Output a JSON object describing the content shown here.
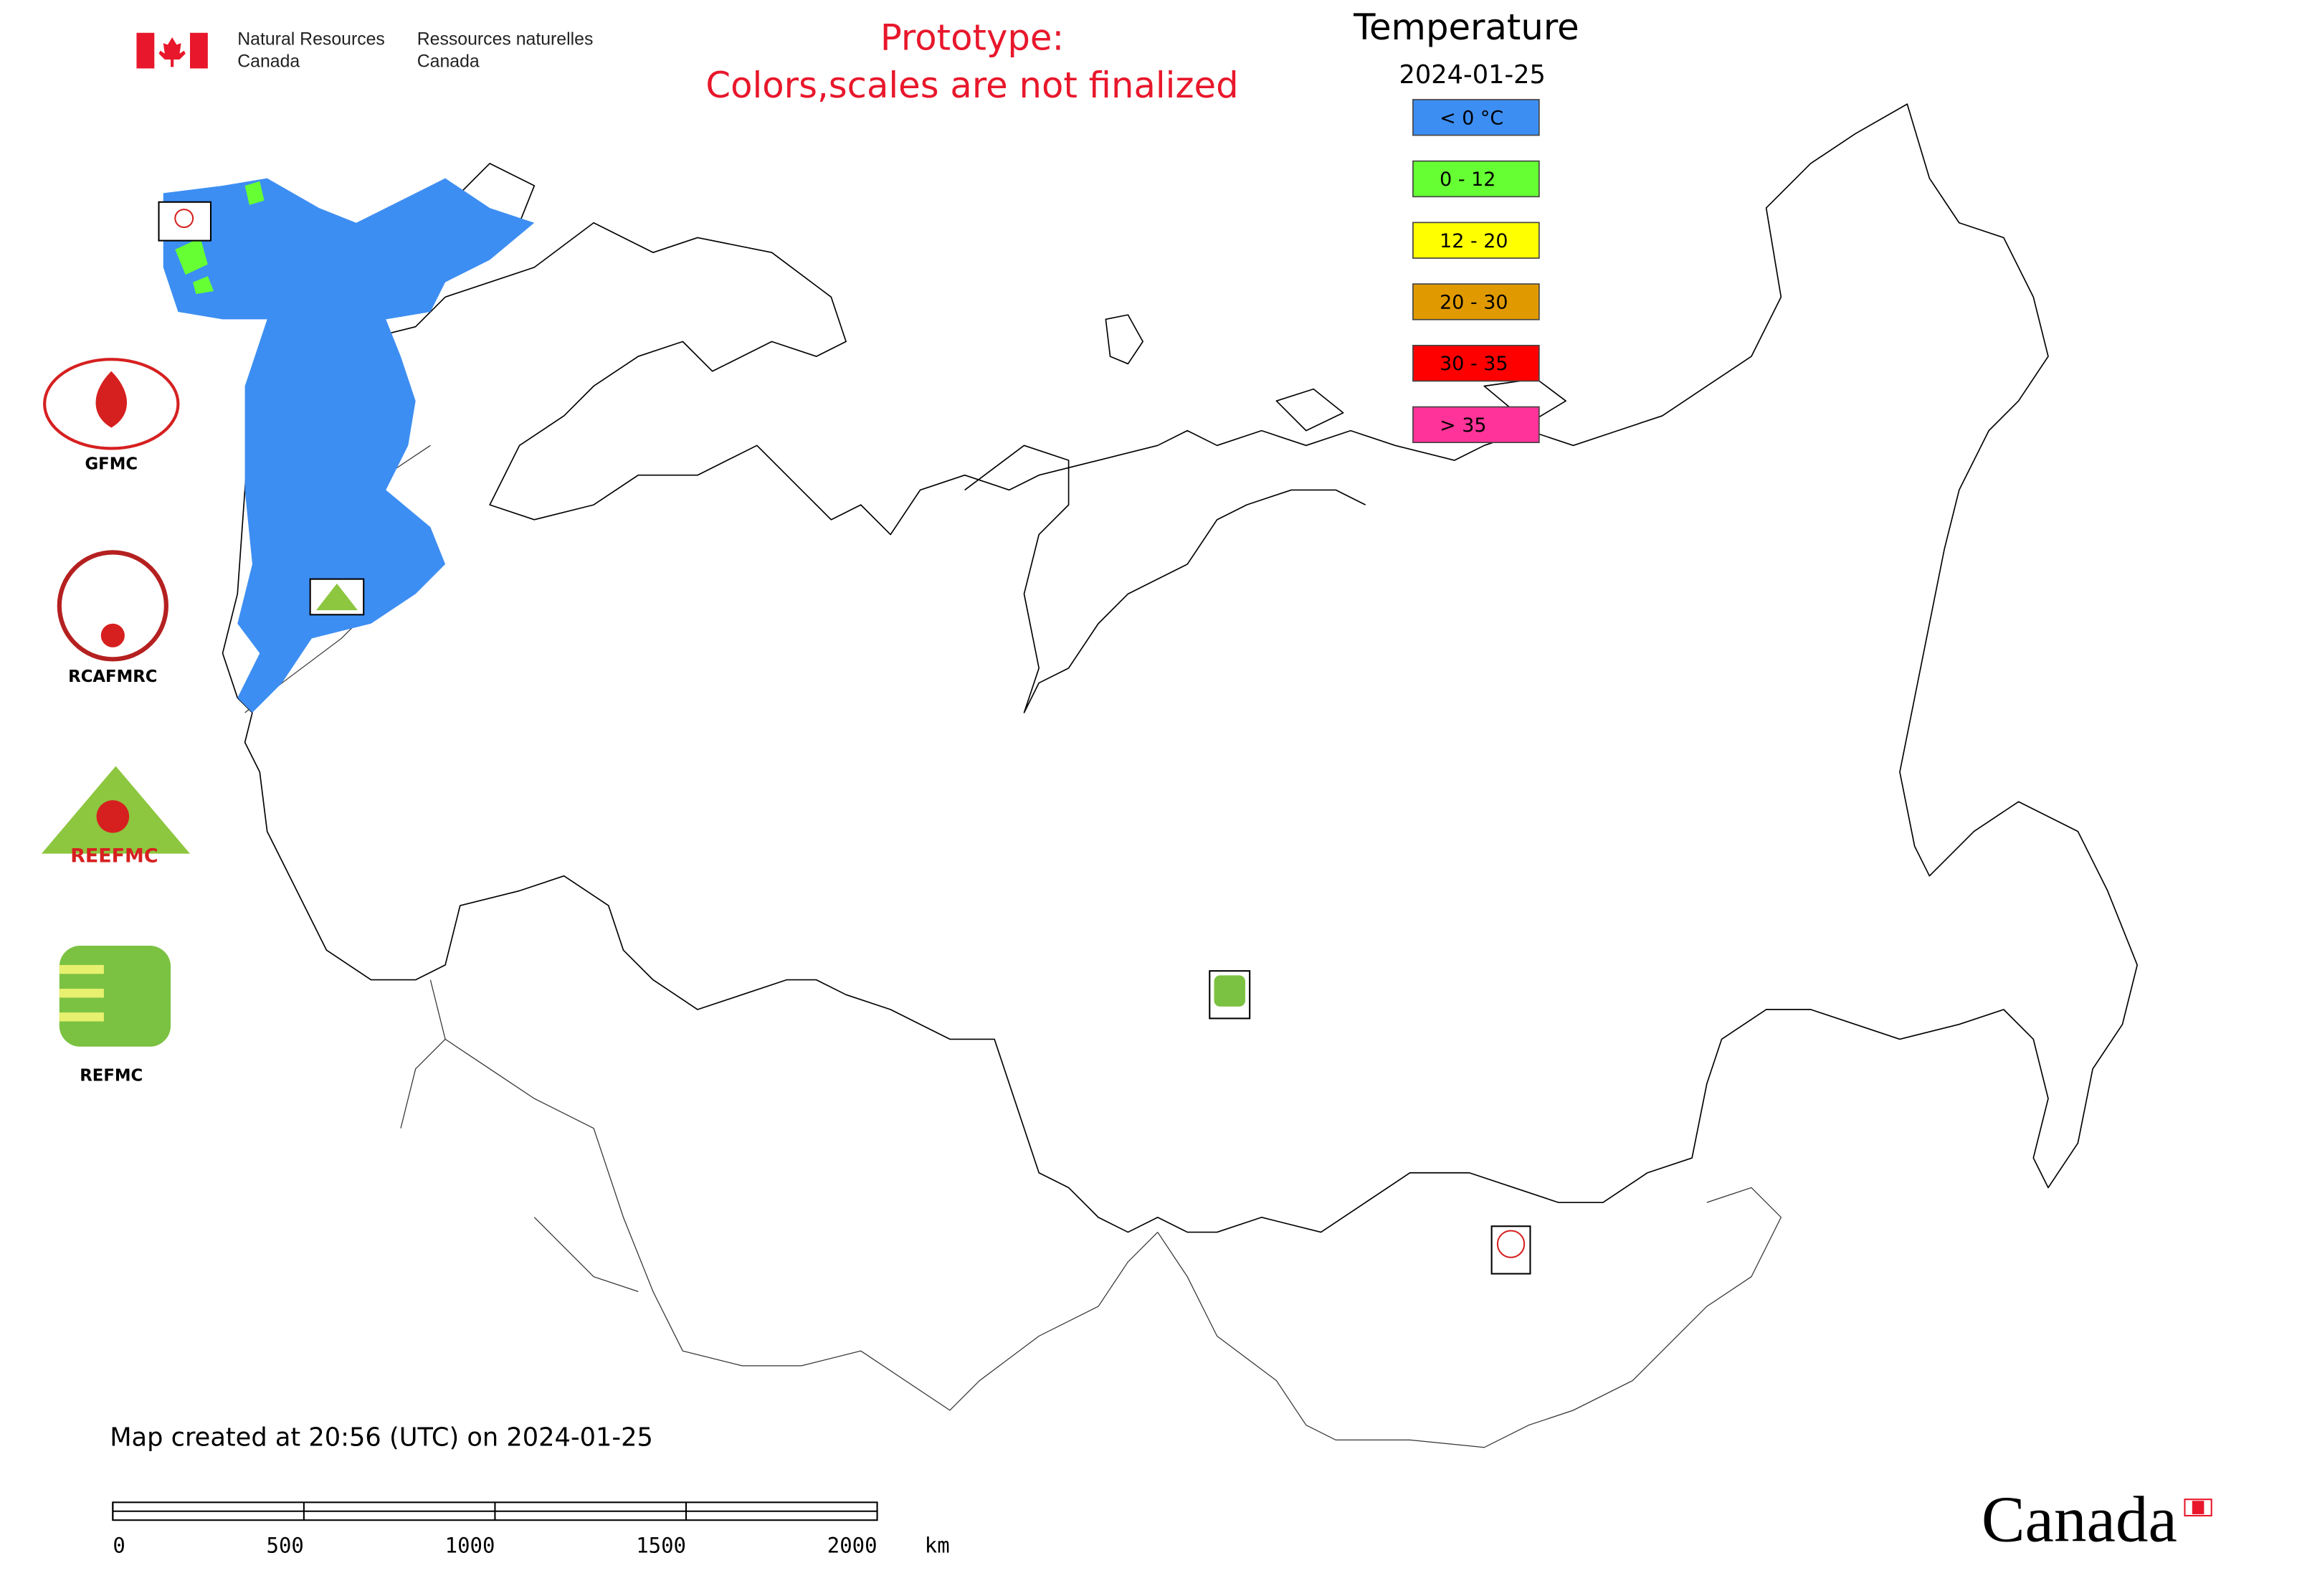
{
  "header": {
    "department_en_line1": "Natural Resources",
    "department_en_line2": "Canada",
    "department_fr_line1": "Ressources naturelles",
    "department_fr_line2": "Canada"
  },
  "notice": {
    "line1": "Prototype:",
    "line2": "Colors,scales are not finalized"
  },
  "legend": {
    "title": "Temperature",
    "date": "2024-01-25",
    "items": [
      {
        "label": "< 0 °C",
        "color": "#3d8ef2"
      },
      {
        "label": "0 - 12",
        "color": "#66ff33"
      },
      {
        "label": "12 - 20",
        "color": "#ffff00"
      },
      {
        "label": "20 - 30",
        "color": "#e09a00"
      },
      {
        "label": "30 - 35",
        "color": "#ff0000"
      },
      {
        "label": "> 35",
        "color": "#ff3399"
      }
    ]
  },
  "logos": [
    {
      "label": "GFMC"
    },
    {
      "label": "RCAFMRC"
    },
    {
      "label": "REEFMC"
    },
    {
      "label": "REFMC"
    }
  ],
  "footer": {
    "created": "Map created at 20:56 (UTC) on 2024-01-25",
    "wordmark": "Canada"
  },
  "scale_bar": {
    "ticks": [
      0,
      500,
      1000,
      1500,
      2000
    ],
    "unit": "km"
  }
}
